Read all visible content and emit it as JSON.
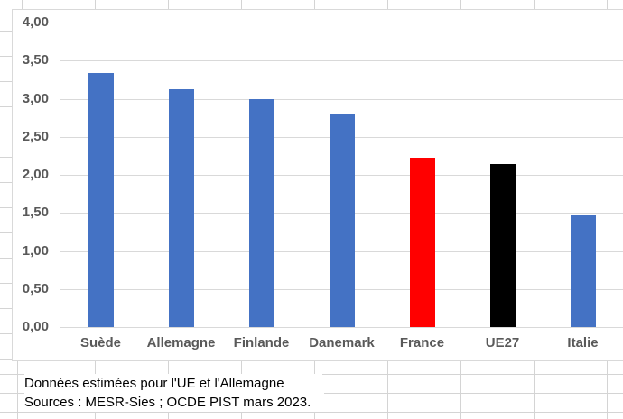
{
  "chart_data": {
    "type": "bar",
    "categories": [
      "Suède",
      "Allemagne",
      "Finlande",
      "Danemark",
      "France",
      "UE27",
      "Italie"
    ],
    "values": [
      3.34,
      3.13,
      2.99,
      2.81,
      2.22,
      2.14,
      1.47
    ],
    "bar_colors": [
      "#4472C4",
      "#4472C4",
      "#4472C4",
      "#4472C4",
      "#FF0000",
      "#000000",
      "#4472C4"
    ],
    "ylim": [
      0,
      4
    ],
    "ytick_step": 0.5,
    "ytick_labels": [
      "4,00",
      "3,50",
      "3,00",
      "2,50",
      "2,00",
      "1,50",
      "1,00",
      "0,50",
      "0,00"
    ],
    "xlabel": "",
    "ylabel": "",
    "grid": true,
    "legend": "none"
  },
  "notes": {
    "line1": "Données estimées pour l'UE et l'Allemagne",
    "line2": "Sources : MESR-Sies ; OCDE PIST mars 2023."
  },
  "colors": {
    "bar_blue": "#4472C4",
    "bar_red": "#FF0000",
    "bar_black": "#000000",
    "axis_label": "#595959",
    "chart_gridline": "#D9D9D9",
    "sheet_gridline": "#D4D4D4"
  }
}
